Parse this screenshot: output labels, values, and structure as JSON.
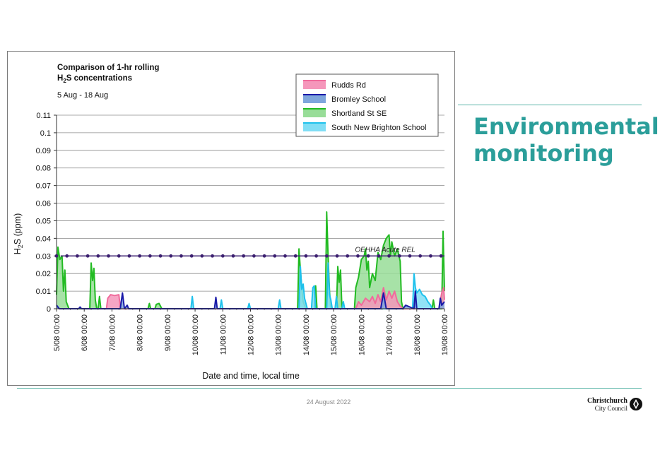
{
  "slide": {
    "title": "Environmental monitoring",
    "date": "24 August 2022",
    "logo": {
      "line1": "Christchurch",
      "line2": "City Council"
    }
  },
  "colors": {
    "rudds": "#f06b9c",
    "rudds_fill": "#f597bb",
    "bromley": "#1a1aa8",
    "bromley_fill": "#7fa6dc",
    "shortland": "#22bb22",
    "shortland_fill": "#98dd98",
    "snb": "#1fc1ec",
    "snb_fill": "#80def5",
    "rel": "#3c2070",
    "accent": "#2b9e9a"
  },
  "chart_data": {
    "type": "area",
    "title_line1": "Comparison of 1-hr rolling",
    "title_line2_prefix": "H",
    "title_line2_sub": "2",
    "title_line2_suffix": "S concentrations",
    "subtitle": "5 Aug - 18 Aug",
    "xlabel": "Date and time, local time",
    "ylabel_prefix": "H",
    "ylabel_sub": "2",
    "ylabel_suffix": "S (ppm)",
    "ylim": [
      0,
      0.11
    ],
    "xlim": [
      5,
      19
    ],
    "y_ticks": [
      0,
      0.01,
      0.02,
      0.03,
      0.04,
      0.05,
      0.06,
      0.07,
      0.08,
      0.09,
      0.1,
      0.11
    ],
    "y_tick_labels": [
      "0",
      "0.01",
      "0.02",
      "0.03",
      "0.04",
      "0.05",
      "0.06",
      "0.07",
      "0.08",
      "0.09",
      "0.1",
      "0.11"
    ],
    "x_ticks": [
      5,
      6,
      7,
      8,
      9,
      10,
      11,
      12,
      13,
      14,
      15,
      16,
      17,
      18,
      19
    ],
    "x_tick_labels": [
      "5/08 00:00",
      "6/08 00:00",
      "7/08 00:00",
      "8/08 00:00",
      "9/08 00:00",
      "10/08 00:00",
      "11/08 00:00",
      "12/08 00:00",
      "13/08 00:00",
      "14/08 00:00",
      "15/08 00:00",
      "16/08 00:00",
      "17/08 00:00",
      "18/08 00:00",
      "19/08 00:00"
    ],
    "grid": true,
    "legend_position": "top-right",
    "reference_line": {
      "label": "OEHHA Acute REL",
      "value": 0.03
    },
    "series": [
      {
        "name": "Rudds Rd",
        "color_key": "rudds",
        "points": [
          [
            6.8,
            0
          ],
          [
            6.85,
            0.006
          ],
          [
            6.95,
            0.008
          ],
          [
            7.1,
            0.0075
          ],
          [
            7.25,
            0.008
          ],
          [
            7.3,
            0.001
          ],
          [
            7.35,
            0
          ],
          [
            15.8,
            0
          ],
          [
            15.9,
            0.004
          ],
          [
            16.0,
            0.002
          ],
          [
            16.15,
            0.006
          ],
          [
            16.3,
            0.004
          ],
          [
            16.4,
            0.007
          ],
          [
            16.5,
            0.003
          ],
          [
            16.6,
            0.008
          ],
          [
            16.7,
            0.004
          ],
          [
            16.8,
            0.012
          ],
          [
            16.9,
            0.005
          ],
          [
            17.0,
            0.01
          ],
          [
            17.1,
            0.006
          ],
          [
            17.2,
            0.01
          ],
          [
            17.3,
            0.004
          ],
          [
            17.4,
            0.0015
          ],
          [
            17.5,
            0
          ],
          [
            18.8,
            0
          ],
          [
            18.9,
            0.009
          ],
          [
            18.97,
            0.012
          ],
          [
            19.0,
            0.005
          ]
        ]
      },
      {
        "name": "Bromley School",
        "color_key": "bromley",
        "points": [
          [
            5.0,
            0.002
          ],
          [
            5.1,
            0
          ],
          [
            5.8,
            0
          ],
          [
            5.85,
            0.001
          ],
          [
            5.9,
            0
          ],
          [
            7.3,
            0
          ],
          [
            7.38,
            0.009
          ],
          [
            7.45,
            0
          ],
          [
            7.55,
            0.002
          ],
          [
            7.6,
            0
          ],
          [
            10.7,
            0
          ],
          [
            10.75,
            0.0065
          ],
          [
            10.8,
            0
          ],
          [
            16.7,
            0
          ],
          [
            16.8,
            0.009
          ],
          [
            16.9,
            0
          ],
          [
            17.5,
            0
          ],
          [
            17.6,
            0.002
          ],
          [
            17.9,
            0
          ],
          [
            17.95,
            0.01
          ],
          [
            18.0,
            0
          ],
          [
            18.8,
            0
          ],
          [
            18.85,
            0.006
          ],
          [
            18.9,
            0.002
          ],
          [
            19.0,
            0.004
          ]
        ]
      },
      {
        "name": "Shortland St SE",
        "color_key": "shortland",
        "points": [
          [
            5.0,
            0.008
          ],
          [
            5.05,
            0.035
          ],
          [
            5.12,
            0.028
          ],
          [
            5.2,
            0.03
          ],
          [
            5.25,
            0.01
          ],
          [
            5.3,
            0.022
          ],
          [
            5.35,
            0.004
          ],
          [
            5.45,
            0
          ],
          [
            6.2,
            0
          ],
          [
            6.25,
            0.026
          ],
          [
            6.3,
            0.016
          ],
          [
            6.35,
            0.023
          ],
          [
            6.4,
            0.005
          ],
          [
            6.45,
            0
          ],
          [
            6.5,
            0
          ],
          [
            6.55,
            0.007
          ],
          [
            6.6,
            0
          ],
          [
            8.3,
            0
          ],
          [
            8.35,
            0.003
          ],
          [
            8.4,
            0
          ],
          [
            8.55,
            0
          ],
          [
            8.6,
            0.0025
          ],
          [
            8.7,
            0.003
          ],
          [
            8.8,
            0
          ],
          [
            13.7,
            0
          ],
          [
            13.75,
            0.034
          ],
          [
            13.8,
            0.022
          ],
          [
            13.85,
            0.012
          ],
          [
            13.9,
            0.004
          ],
          [
            14.0,
            0
          ],
          [
            14.3,
            0
          ],
          [
            14.35,
            0.013
          ],
          [
            14.4,
            0
          ],
          [
            14.7,
            0
          ],
          [
            14.75,
            0.055
          ],
          [
            14.8,
            0.03
          ],
          [
            14.85,
            0.01
          ],
          [
            14.9,
            0
          ],
          [
            15.1,
            0
          ],
          [
            15.15,
            0.024
          ],
          [
            15.2,
            0.015
          ],
          [
            15.25,
            0.022
          ],
          [
            15.3,
            0
          ],
          [
            15.75,
            0
          ],
          [
            15.8,
            0.012
          ],
          [
            15.9,
            0.018
          ],
          [
            16.0,
            0.028
          ],
          [
            16.1,
            0.03
          ],
          [
            16.15,
            0.034
          ],
          [
            16.2,
            0.022
          ],
          [
            16.25,
            0.027
          ],
          [
            16.3,
            0.012
          ],
          [
            16.4,
            0.02
          ],
          [
            16.5,
            0.016
          ],
          [
            16.6,
            0.032
          ],
          [
            16.7,
            0.028
          ],
          [
            16.8,
            0.036
          ],
          [
            16.9,
            0.04
          ],
          [
            17.0,
            0.042
          ],
          [
            17.05,
            0.03
          ],
          [
            17.1,
            0.038
          ],
          [
            17.2,
            0.03
          ],
          [
            17.3,
            0.034
          ],
          [
            17.4,
            0.027
          ],
          [
            17.45,
            0.004
          ],
          [
            17.5,
            0
          ],
          [
            18.55,
            0
          ],
          [
            18.6,
            0.005
          ],
          [
            18.65,
            0
          ],
          [
            18.9,
            0
          ],
          [
            18.95,
            0.044
          ],
          [
            19.0,
            0.01
          ]
        ]
      },
      {
        "name": "South New Brighton School",
        "color_key": "snb",
        "points": [
          [
            9.85,
            0
          ],
          [
            9.9,
            0.007
          ],
          [
            9.95,
            0
          ],
          [
            10.9,
            0
          ],
          [
            10.95,
            0.005
          ],
          [
            11.0,
            0
          ],
          [
            11.9,
            0
          ],
          [
            11.95,
            0.003
          ],
          [
            12.0,
            0
          ],
          [
            13.0,
            0
          ],
          [
            13.05,
            0.005
          ],
          [
            13.1,
            0
          ],
          [
            13.75,
            0
          ],
          [
            13.8,
            0.024
          ],
          [
            13.85,
            0.011
          ],
          [
            13.9,
            0.014
          ],
          [
            13.95,
            0.006
          ],
          [
            14.05,
            0
          ],
          [
            14.2,
            0
          ],
          [
            14.25,
            0.012
          ],
          [
            14.3,
            0.013
          ],
          [
            14.35,
            0
          ],
          [
            14.75,
            0
          ],
          [
            14.8,
            0.026
          ],
          [
            14.85,
            0.008
          ],
          [
            14.9,
            0.005
          ],
          [
            14.95,
            0
          ],
          [
            15.05,
            0
          ],
          [
            15.1,
            0.007
          ],
          [
            15.15,
            0
          ],
          [
            15.3,
            0
          ],
          [
            15.35,
            0.004
          ],
          [
            15.4,
            0
          ],
          [
            17.85,
            0
          ],
          [
            17.9,
            0.02
          ],
          [
            17.95,
            0.012
          ],
          [
            18.0,
            0.009
          ],
          [
            18.1,
            0.011
          ],
          [
            18.2,
            0.008
          ],
          [
            18.3,
            0.007
          ],
          [
            18.4,
            0.004
          ],
          [
            18.5,
            0.002
          ],
          [
            18.55,
            0
          ]
        ]
      }
    ]
  }
}
